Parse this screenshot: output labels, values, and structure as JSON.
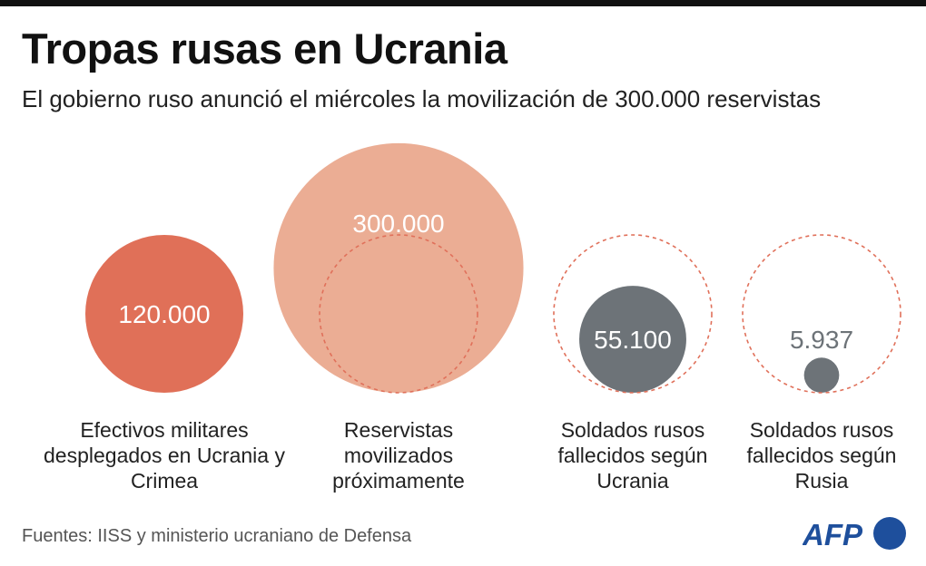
{
  "title": "Tropas rusas en Ucrania",
  "subtitle": "El gobierno ruso anunció el miércoles la movilización de 300.000 reservistas",
  "footer": "Fuentes: IISS y ministerio ucraniano de Defensa",
  "logo": "AFP",
  "colors": {
    "deployed": "#e07058",
    "reservists": "#ebad94",
    "deaths": "#6d7378",
    "reference_dashed": "#e0705a",
    "logo": "#1e4f9c"
  },
  "chart_data": {
    "type": "bubble",
    "encoding": "circle area proportional to value; dashed circle marks 120.000 reference",
    "reference_value": 120000,
    "items": [
      {
        "label": "Efectivos militares desplegados en Ucrania y Crimea",
        "value": 120000,
        "value_label": "120.000"
      },
      {
        "label": "Reservistas movilizados próximamente",
        "value": 300000,
        "value_label": "300.000"
      },
      {
        "label": "Soldados rusos fallecidos según Ucrania",
        "value": 55100,
        "value_label": "55.100"
      },
      {
        "label": "Soldados rusos fallecidos según Rusia",
        "value": 5937,
        "value_label": "5.937"
      }
    ]
  }
}
